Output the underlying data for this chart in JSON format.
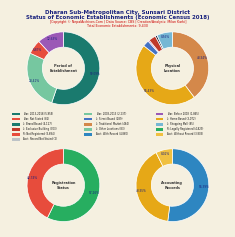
{
  "title_line1": "Dharan Sub-Metropolitan City, Sunsari District",
  "title_line2": "Status of Economic Establishments (Economic Census 2018)",
  "subtitle": "[Copyright © NepalArchives.Com | Data Source: CBS | Creation/Analysis: Milan Karki]",
  "subtitle2": "Total Economic Establishments: 9,430",
  "bg_color": "#f5f0e0",
  "charts": [
    {
      "label": "Period of\nEstablishment",
      "values": [
        59.09,
        28.41,
        6.87,
        12.63
      ],
      "colors": [
        "#1a7a6e",
        "#76c7a0",
        "#e74c3c",
        "#9b59b6"
      ],
      "startangle": 90
    },
    {
      "label": "Physical\nLocation",
      "values": [
        48.94,
        56.43,
        3.43,
        0.75,
        3.95,
        1.01,
        8.56
      ],
      "colors": [
        "#d4884a",
        "#e6a817",
        "#4472c4",
        "#9b59b6",
        "#c0392b",
        "#1a2035",
        "#76b7d4"
      ],
      "startangle": 90
    },
    {
      "label": "Registration\nStatus",
      "values": [
        57.26,
        42.74
      ],
      "colors": [
        "#27ae60",
        "#e74c3c"
      ],
      "startangle": 90
    },
    {
      "label": "Accounting\nRecords",
      "values": [
        56.39,
        43.95,
        8.02
      ],
      "colors": [
        "#2e86c1",
        "#e6a817",
        "#f0c040"
      ],
      "startangle": 90
    }
  ],
  "legend_entries": [
    {
      "label": "Year: 2013-2018 (5,959)",
      "color": "#1a7a6e"
    },
    {
      "label": "Year: 2003-2013 (2,237)",
      "color": "#76c7a0"
    },
    {
      "label": "Year: Before 2003 (1,865)",
      "color": "#9b59b6"
    },
    {
      "label": "Year: Not Stated (82)",
      "color": "#e74c3c"
    },
    {
      "label": "L: Street Based (289)",
      "color": "#4472c4"
    },
    {
      "label": "L: Home Based (3,072)",
      "color": "#e6a817"
    },
    {
      "label": "L: Brand Based (4,127)",
      "color": "#1a7a6e"
    },
    {
      "label": "L: Traditional Market (464)",
      "color": "#d4884a"
    },
    {
      "label": "L: Shopping Mall (85)",
      "color": "#76b7d4"
    },
    {
      "label": "L: Exclusive Building (303)",
      "color": "#c0392b"
    },
    {
      "label": "L: Other Locations (83)",
      "color": "#76c7a0"
    },
    {
      "label": "R: Legally Registered (4,829)",
      "color": "#27ae60"
    },
    {
      "label": "R: Not Registered (3,684)",
      "color": "#e74c3c"
    },
    {
      "label": "Acct. With Record (4,860)",
      "color": "#2e86c1"
    },
    {
      "label": "Acct. Without Record (3,803)",
      "color": "#f0c040"
    },
    {
      "label": "Acct. Record Not Stated (2)",
      "color": "#bdc3c7"
    }
  ]
}
